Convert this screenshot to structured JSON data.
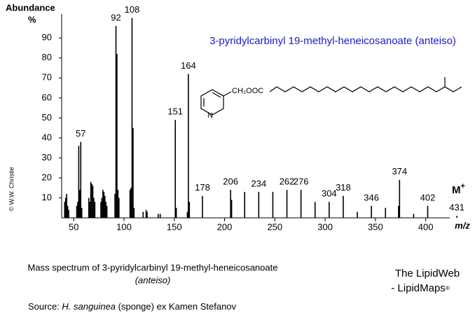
{
  "chart_data": {
    "type": "spectrum",
    "title": "3-pyridylcarbinyl 19-methyl-heneicosanoate (anteiso)",
    "title_color": "#1a1acc",
    "y_label": "Abundance",
    "y_unit": "%",
    "x_label": "m/z",
    "molecular_ion": "M",
    "molecular_ion_sup": "+",
    "structure_group": "CH₂OOC",
    "structure_atom": "N",
    "copyright": "© W.W. Christie",
    "xlim": [
      38,
      433
    ],
    "ylim": [
      0,
      102
    ],
    "xticks": [
      50,
      100,
      150,
      200,
      250,
      300,
      350,
      400
    ],
    "yticks": [
      10,
      20,
      30,
      40,
      50,
      60,
      70,
      80,
      90
    ],
    "color": "#000000",
    "x": [
      41,
      42,
      43,
      44,
      45,
      53,
      54,
      55,
      56,
      57,
      58,
      65,
      66,
      67,
      68,
      69,
      70,
      71,
      77,
      78,
      79,
      80,
      81,
      82,
      83,
      91,
      92,
      93,
      94,
      95,
      106,
      107,
      108,
      109,
      110,
      119,
      122,
      123,
      134,
      136,
      151,
      152,
      163,
      164,
      165,
      178,
      206,
      207,
      220,
      234,
      248,
      262,
      276,
      290,
      304,
      318,
      332,
      346,
      360,
      373,
      374,
      388,
      402,
      431
    ],
    "values": [
      8,
      10,
      12,
      6,
      4,
      6,
      8,
      36,
      14,
      38,
      5,
      10,
      8,
      18,
      17,
      16,
      10,
      8,
      8,
      10,
      14,
      13,
      11,
      8,
      6,
      12,
      96,
      82,
      14,
      10,
      14,
      15,
      100,
      45,
      5,
      3,
      4,
      3,
      2,
      2,
      49,
      5,
      3,
      72,
      8,
      11,
      14,
      9,
      13,
      13,
      13,
      14,
      14,
      8,
      8,
      11,
      3,
      6,
      5,
      6,
      19,
      2,
      6,
      1
    ],
    "peak_labels": [
      57,
      92,
      108,
      151,
      164,
      178,
      206,
      234,
      262,
      276,
      304,
      318,
      346,
      374,
      402,
      431
    ]
  },
  "caption": {
    "line1": "Mass spectrum of 3-pyridylcarbinyl 19-methyl-heneicosanoate",
    "line2": "(anteiso)",
    "source_prefix": "Source: ",
    "source_species": "H. sanguinea",
    "source_rest": " (sponge) ex Kamen Stefanov"
  },
  "branding": {
    "line1": "The LipidWeb",
    "line2": "- LipidMaps",
    "mark": "®"
  }
}
